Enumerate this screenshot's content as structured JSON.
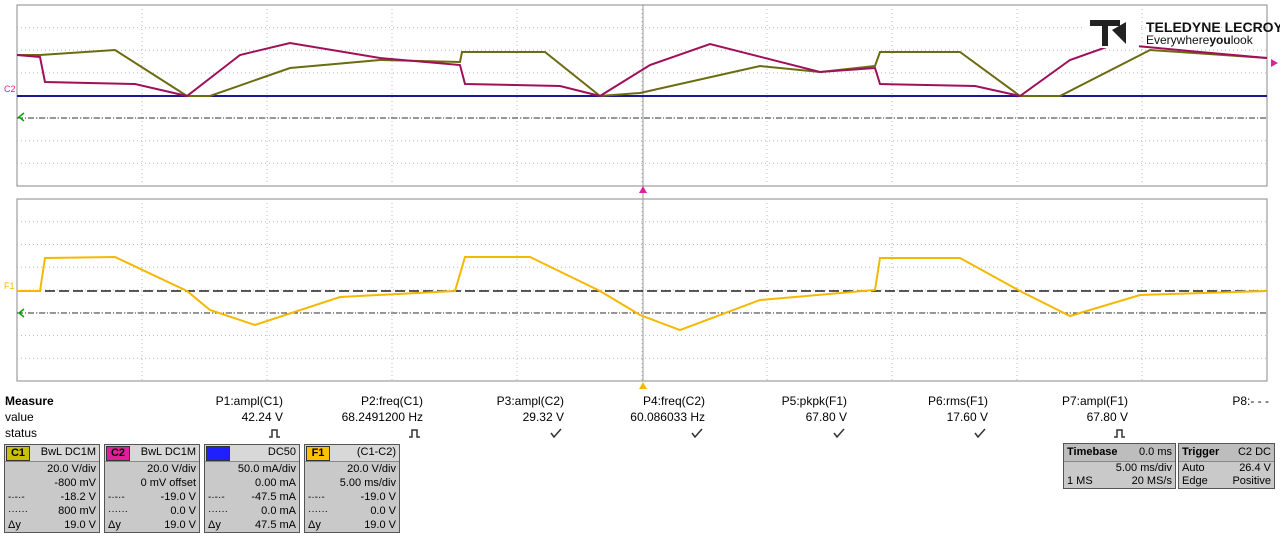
{
  "header": {
    "brand": "TELEDYNE LECROY",
    "tagline": [
      "Everywhere",
      "you",
      "look"
    ]
  },
  "traces": {
    "top_label": "C2",
    "bottom_label": "F1"
  },
  "measure": {
    "labels": [
      "Measure",
      "value",
      "status"
    ],
    "params": [
      {
        "name": "P1:ampl(C1)",
        "value": "42.24 V"
      },
      {
        "name": "P2:freq(C1)",
        "value": "68.2491200 Hz"
      },
      {
        "name": "P3:ampl(C2)",
        "value": "29.32 V"
      },
      {
        "name": "P4:freq(C2)",
        "value": "60.086033 Hz"
      },
      {
        "name": "P5:pkpk(F1)",
        "value": "67.80 V"
      },
      {
        "name": "P6:rms(F1)",
        "value": "17.60 V"
      },
      {
        "name": "P7:ampl(F1)",
        "value": "67.80 V"
      },
      {
        "name": "P8:- - -"
      }
    ]
  },
  "channels": [
    {
      "tag": "C1",
      "header": "BwL DC1M",
      "rows": [
        "20.0 V/div",
        "-800 mV",
        "-18.2 V",
        "800 mV",
        "19.0 V"
      ],
      "delta": "Δy"
    },
    {
      "tag": "C2",
      "header": "BwL DC1M",
      "rows": [
        "20.0 V/div",
        "0 mV offset",
        "-19.0 V",
        "0.0 V",
        "19.0 V"
      ],
      "delta": "Δy"
    },
    {
      "tag": "C3",
      "header": "DC50",
      "rows": [
        "50.0 mA/div",
        "0.00 mA",
        "-47.5 mA",
        "0.0 mA",
        "47.5 mA"
      ],
      "delta": "Δy"
    },
    {
      "tag": "F1",
      "header": "(C1-C2)",
      "rows": [
        "20.0 V/div",
        "5.00 ms/div",
        "-19.0 V",
        "0.0 V",
        "19.0 V"
      ],
      "delta": "Δy"
    }
  ],
  "timebase": {
    "title": "Timebase",
    "delay": "0.0 ms",
    "div": "5.00 ms/div",
    "points": "1 MS",
    "rate": "20 MS/s"
  },
  "trigger": {
    "title": "Trigger",
    "source": "C2 DC",
    "mode": "Auto",
    "level": "26.4 V",
    "type": "Edge",
    "slope": "Positive"
  }
}
